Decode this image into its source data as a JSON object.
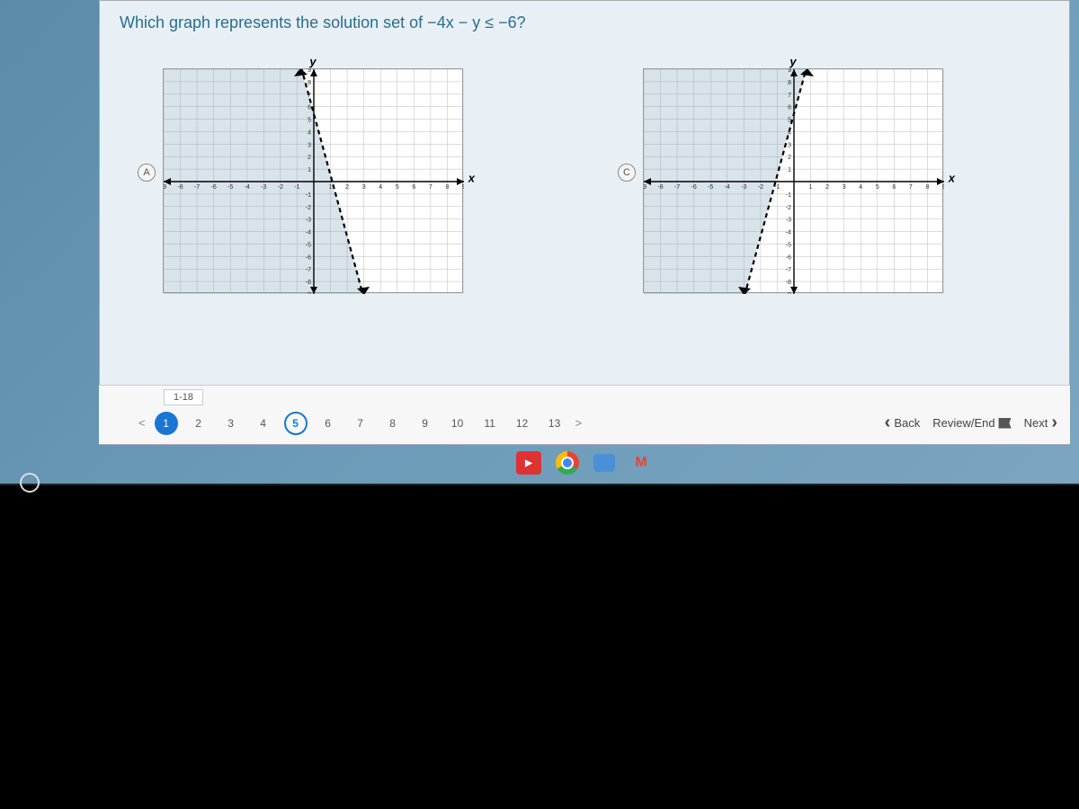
{
  "question": {
    "text": "Which graph represents the solution set of −4x − y ≤ −6?"
  },
  "colors": {
    "page_bg": "#e8f0f5",
    "screen_bg": "#6b9bb8",
    "grid": "#bbbbbb",
    "axis": "#000000",
    "shade": "rgba(120,155,180,0.28)"
  },
  "graphs": [
    {
      "option": "A",
      "type": "inequality-graph",
      "x_range": [
        -9,
        9
      ],
      "y_range": [
        -9,
        9
      ],
      "x_ticks": [
        -9,
        -8,
        -7,
        -6,
        -5,
        -4,
        -3,
        -2,
        -1,
        1,
        2,
        3,
        4,
        5,
        6,
        7,
        8,
        9
      ],
      "y_ticks": [
        -9,
        -8,
        -7,
        -6,
        -5,
        -4,
        -3,
        -2,
        -1,
        1,
        2,
        3,
        4,
        5,
        6,
        7,
        8,
        9
      ],
      "line": {
        "slope": -4,
        "intercept": 6,
        "style": "dashed",
        "p1": [
          -0.8,
          9.2
        ],
        "p2": [
          3.8,
          -9.2
        ]
      },
      "shade_side": "left",
      "x_label": "x",
      "y_label": "y"
    },
    {
      "option": "C",
      "type": "inequality-graph",
      "x_range": [
        -9,
        9
      ],
      "y_range": [
        -9,
        9
      ],
      "x_ticks": [
        -9,
        -8,
        -7,
        -6,
        -5,
        -4,
        -3,
        -2,
        -1,
        1,
        2,
        3,
        4,
        5,
        6,
        7,
        8,
        9
      ],
      "y_ticks": [
        -9,
        -8,
        -7,
        -6,
        -5,
        -4,
        -3,
        -2,
        -1,
        1,
        2,
        3,
        4,
        5,
        6,
        7,
        8,
        9
      ],
      "line": {
        "slope": 4,
        "intercept": 6,
        "style": "dashed",
        "p1": [
          -3.8,
          -9.2
        ],
        "p2": [
          0.8,
          9.2
        ]
      },
      "shade_side": "left",
      "x_label": "x",
      "y_label": "y"
    }
  ],
  "navbar": {
    "range_label": "1-18",
    "questions": [
      {
        "n": "1",
        "state": "answered"
      },
      {
        "n": "2",
        "state": ""
      },
      {
        "n": "3",
        "state": ""
      },
      {
        "n": "4",
        "state": ""
      },
      {
        "n": "5",
        "state": "current"
      },
      {
        "n": "6",
        "state": ""
      },
      {
        "n": "7",
        "state": ""
      },
      {
        "n": "8",
        "state": ""
      },
      {
        "n": "9",
        "state": ""
      },
      {
        "n": "10",
        "state": ""
      },
      {
        "n": "11",
        "state": ""
      },
      {
        "n": "12",
        "state": ""
      },
      {
        "n": "13",
        "state": ""
      }
    ],
    "more": ">",
    "back": "Back",
    "review": "Review/End",
    "next": "Next"
  },
  "taskbar": {
    "video": "▶",
    "gmail": "M"
  }
}
